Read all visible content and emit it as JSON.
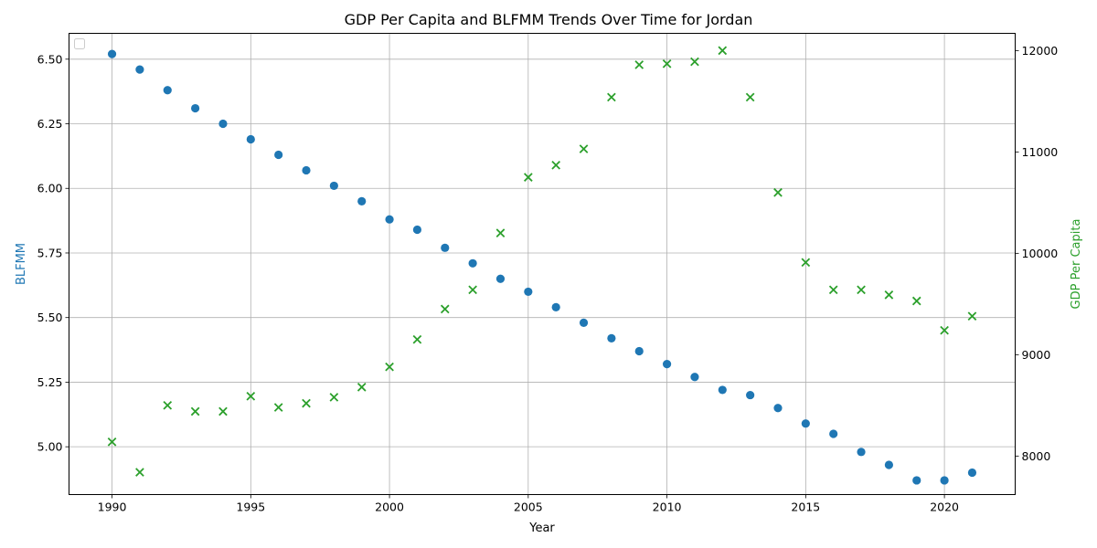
{
  "chart_data": {
    "type": "scatter",
    "title": "GDP Per Capita and BLFMM Trends Over Time for Jordan",
    "xlabel": "Year",
    "ylabel_left": "BLFMM",
    "ylabel_right": "GDP Per Capita",
    "x": [
      1990,
      1991,
      1992,
      1993,
      1994,
      1995,
      1996,
      1997,
      1998,
      1999,
      2000,
      2001,
      2002,
      2003,
      2004,
      2005,
      2006,
      2007,
      2008,
      2009,
      2010,
      2011,
      2012,
      2013,
      2014,
      2015,
      2016,
      2017,
      2018,
      2019,
      2020,
      2021
    ],
    "xlim": [
      1988.45,
      2022.55
    ],
    "xticks": [
      1990,
      1995,
      2000,
      2005,
      2010,
      2015,
      2020
    ],
    "ylim_left": [
      4.815,
      6.6
    ],
    "yticks_left": [
      "5.00",
      "5.25",
      "5.50",
      "5.75",
      "6.00",
      "6.25",
      "6.50"
    ],
    "ylim_right": [
      7620,
      12170
    ],
    "yticks_right": [
      "8000",
      "9000",
      "10000",
      "11000",
      "12000"
    ],
    "grid": true,
    "legend": "top-left (empty)",
    "series": [
      {
        "key": "blfmm",
        "axis": "left",
        "marker": "circle",
        "color": "#1f77b4",
        "values": [
          6.52,
          6.46,
          6.38,
          6.31,
          6.25,
          6.19,
          6.13,
          6.07,
          6.01,
          5.95,
          5.88,
          5.84,
          5.77,
          5.71,
          5.65,
          5.6,
          5.54,
          5.48,
          5.42,
          5.37,
          5.32,
          5.27,
          5.22,
          5.2,
          5.15,
          5.09,
          5.05,
          4.98,
          4.93,
          4.87,
          4.87,
          4.9
        ]
      },
      {
        "key": "gdp",
        "axis": "right",
        "marker": "x",
        "color": "#2ca02c",
        "values": [
          8140,
          7840,
          8500,
          8440,
          8440,
          8590,
          8480,
          8520,
          8580,
          8680,
          8880,
          9150,
          9450,
          9640,
          10200,
          10750,
          10870,
          11030,
          11540,
          11860,
          11870,
          11890,
          12000,
          11540,
          10600,
          9910,
          9640,
          9640,
          9590,
          9530,
          9240,
          9380
        ]
      }
    ]
  }
}
